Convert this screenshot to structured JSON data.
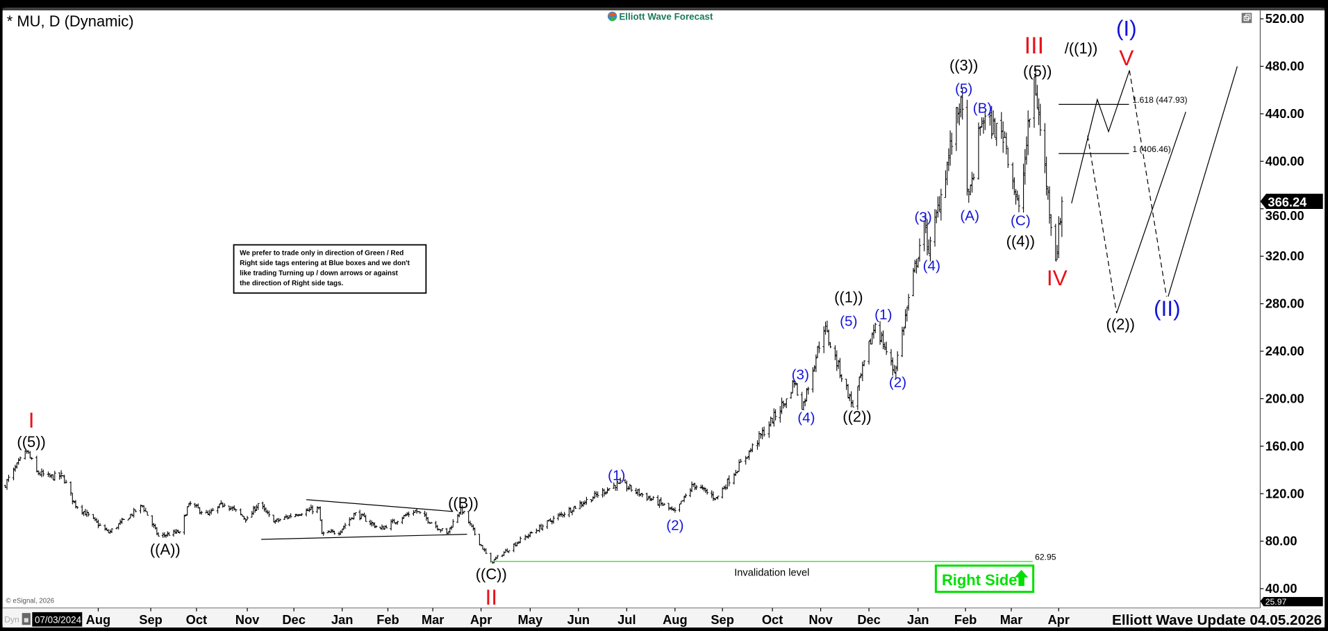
{
  "header": {
    "title": "* MU, D (Dynamic)",
    "logo_text": "Elliott Wave Forecast",
    "logo_color": "#1a7a5a"
  },
  "note_box": {
    "lines": [
      "We prefer to trade only in direction of Green / Red",
      "Right side tags entering at Blue boxes and we don't",
      "like trading Turning up / down arrows or against",
      "the direction of Right side tags."
    ]
  },
  "right_side_tag": {
    "label": "Right Side",
    "arrow": "up-arrow-icon",
    "color": "#00e000"
  },
  "footer": {
    "copyright": "© eSignal, 2026",
    "mode": "Dyn",
    "cursor_date": "07/03/2024",
    "update_label": "Elliott Wave Update 04.05.2026"
  },
  "colors": {
    "red": "#e8121a",
    "blue": "#1414d8",
    "black": "#000000",
    "green": "#22dd22"
  },
  "annotations": [
    {
      "text": "I",
      "color": "red"
    },
    {
      "text": "((5))",
      "color": "black"
    },
    {
      "text": "((A))",
      "color": "black"
    },
    {
      "text": "((B))",
      "color": "black"
    },
    {
      "text": "((C))",
      "color": "black"
    },
    {
      "text": "II",
      "color": "red"
    },
    {
      "text": "(1)",
      "color": "blue"
    },
    {
      "text": "(2)",
      "color": "blue"
    },
    {
      "text": "(3)",
      "color": "blue"
    },
    {
      "text": "(4)",
      "color": "blue"
    },
    {
      "text": "((1))",
      "color": "black"
    },
    {
      "text": "(5)",
      "color": "blue"
    },
    {
      "text": "((2))",
      "color": "black"
    },
    {
      "text": "(1)",
      "color": "blue"
    },
    {
      "text": "(2)",
      "color": "blue"
    },
    {
      "text": "(3)",
      "color": "blue"
    },
    {
      "text": "(4)",
      "color": "blue"
    },
    {
      "text": "((3))",
      "color": "black"
    },
    {
      "text": "(5)",
      "color": "blue"
    },
    {
      "text": "(A)",
      "color": "blue"
    },
    {
      "text": "(B)",
      "color": "blue"
    },
    {
      "text": "(C)",
      "color": "blue"
    },
    {
      "text": "((4))",
      "color": "black"
    },
    {
      "text": "III",
      "color": "red"
    },
    {
      "text": "/((1))",
      "color": "black"
    },
    {
      "text": "((5))",
      "color": "black"
    },
    {
      "text": "IV",
      "color": "red"
    },
    {
      "text": "(I)",
      "color": "blue"
    },
    {
      "text": "V",
      "color": "red"
    },
    {
      "text": "((2))",
      "color": "black"
    },
    {
      "text": "(II)",
      "color": "blue"
    }
  ],
  "chart_data": {
    "type": "ohlc",
    "symbol": "MU",
    "interval": "D",
    "y_ticks": [
      "520.00",
      "480.00",
      "440.00",
      "400.00",
      "360.00",
      "320.00",
      "280.00",
      "240.00",
      "200.00",
      "160.00",
      "120.00",
      "80.00",
      "40.00"
    ],
    "ylim": [
      40,
      520
    ],
    "x_ticks": [
      "Aug",
      "Sep",
      "Oct",
      "Nov",
      "Dec",
      "Jan",
      "Feb",
      "Mar",
      "Apr",
      "May",
      "Jun",
      "Jul",
      "Aug",
      "Sep",
      "Oct",
      "Nov",
      "Dec",
      "Jan",
      "Feb",
      "Mar",
      "Apr"
    ],
    "grid": false,
    "last_price": "366.24",
    "low_marker": "25.97",
    "pivots": [
      [
        "2024-06-04",
        126
      ],
      [
        "2024-06-18",
        156
      ],
      [
        "2024-06-24",
        138
      ],
      [
        "2024-07-01",
        134
      ],
      [
        "2024-07-10",
        135
      ],
      [
        "2024-07-17",
        112
      ],
      [
        "2024-08-07",
        87
      ],
      [
        "2024-08-27",
        110
      ],
      [
        "2024-09-06",
        84
      ],
      [
        "2024-09-20",
        88
      ],
      [
        "2024-09-26",
        112
      ],
      [
        "2024-10-08",
        102
      ],
      [
        "2024-10-18",
        112
      ],
      [
        "2024-11-01",
        98
      ],
      [
        "2024-11-08",
        112
      ],
      [
        "2024-11-18",
        96
      ],
      [
        "2024-12-02",
        103
      ],
      [
        "2024-12-17",
        108
      ],
      [
        "2024-12-19",
        86
      ],
      [
        "2024-12-30",
        88
      ],
      [
        "2025-01-10",
        104
      ],
      [
        "2025-01-27",
        90
      ],
      [
        "2025-02-18",
        106
      ],
      [
        "2025-03-10",
        86
      ],
      [
        "2025-03-19",
        108
      ],
      [
        "2025-04-07",
        62
      ],
      [
        "2025-04-24",
        80
      ],
      [
        "2025-05-15",
        98
      ],
      [
        "2025-06-26",
        129
      ],
      [
        "2025-07-25",
        110
      ],
      [
        "2025-08-01",
        104
      ],
      [
        "2025-08-13",
        128
      ],
      [
        "2025-08-28",
        116
      ],
      [
        "2025-09-22",
        165
      ],
      [
        "2025-10-10",
        200
      ],
      [
        "2025-10-15",
        215
      ],
      [
        "2025-10-20",
        191
      ],
      [
        "2025-11-03",
        261
      ],
      [
        "2025-11-21",
        193
      ],
      [
        "2025-12-05",
        264
      ],
      [
        "2025-12-17",
        222
      ],
      [
        "2026-01-05",
        350
      ],
      [
        "2026-01-08",
        322
      ],
      [
        "2026-01-29",
        455
      ],
      [
        "2026-02-03",
        365
      ],
      [
        "2026-02-11",
        437
      ],
      [
        "2026-02-25",
        420
      ],
      [
        "2026-03-06",
        357
      ],
      [
        "2026-03-16",
        471
      ],
      [
        "2026-03-30",
        316
      ],
      [
        "2026-04-03",
        366.24
      ]
    ],
    "fib_levels": [
      {
        "label": "1.618 (447.93)",
        "value": 447.93
      },
      {
        "label": "1 (406.46)",
        "value": 406.46
      }
    ],
    "invalidation": {
      "label": "Invalidation level",
      "value_label": "62.95",
      "value": 62.95
    },
    "triangle_lines": [
      [
        [
          "2024-12-09",
          115
        ],
        [
          "2025-03-14",
          105
        ]
      ],
      [
        [
          "2024-11-10",
          81.5
        ],
        [
          "2025-03-23",
          85.8
        ]
      ]
    ],
    "projections": [
      {
        "style": "solid",
        "points": [
          [
            "2026-04-09",
            364.6
          ],
          [
            "2026-04-25",
            452
          ],
          [
            "2026-05-02",
            425
          ],
          [
            "2026-05-15",
            476.5
          ]
        ]
      },
      {
        "style": "dashed",
        "points": [
          [
            "2026-05-15",
            476.5
          ],
          [
            "2026-06-07",
            286
          ]
        ]
      },
      {
        "style": "solid",
        "points": [
          [
            "2026-06-08",
            286
          ],
          [
            "2026-07-21",
            480
          ]
        ]
      },
      {
        "style": "dashed",
        "points": [
          [
            "2026-04-19",
            421.6
          ],
          [
            "2026-05-07",
            272
          ]
        ]
      },
      {
        "style": "solid",
        "points": [
          [
            "2026-05-07",
            272
          ],
          [
            "2026-06-19",
            441.6
          ]
        ]
      }
    ]
  }
}
